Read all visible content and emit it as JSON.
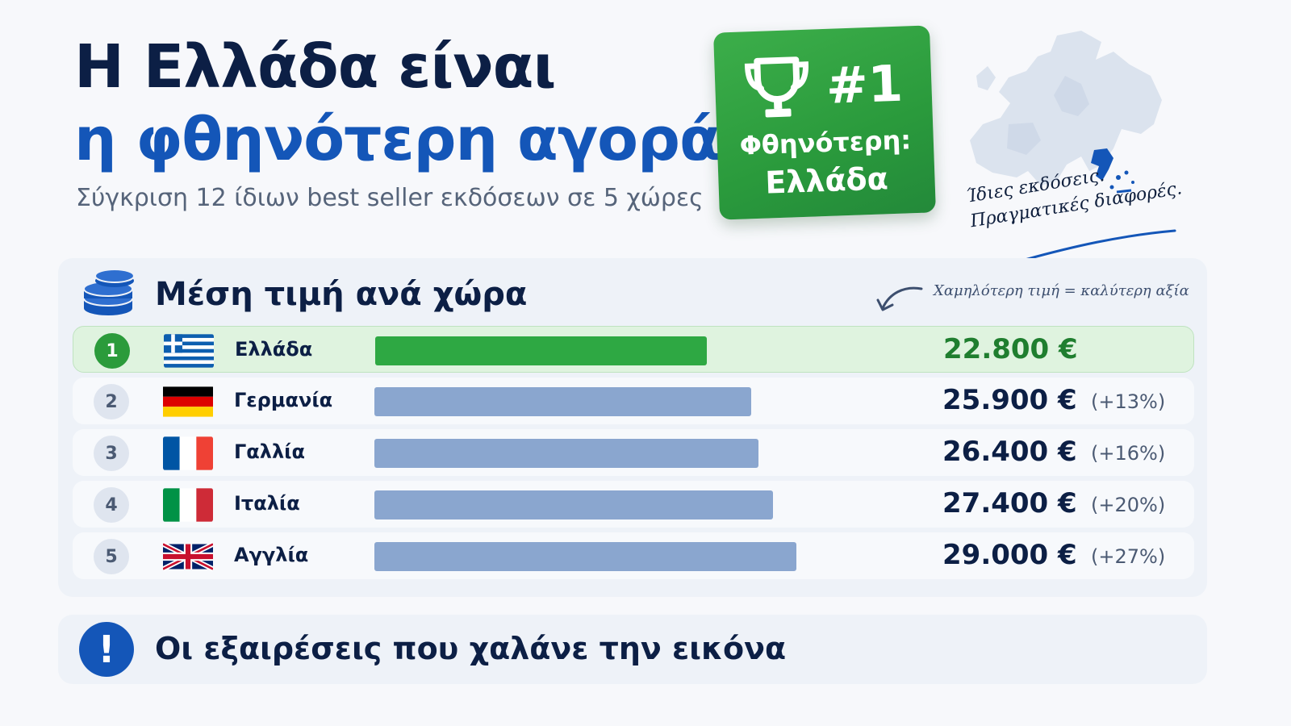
{
  "header": {
    "title_line1": "Η Ελλάδα είναι",
    "title_line2": "η φθηνότερη αγορά",
    "subtitle": "Σύγκριση 12 ίδιων best seller εκδόσεων σε 5 χώρες"
  },
  "badge": {
    "rank": "#1",
    "line1": "Φθηνότερη:",
    "line2": "Ελλάδα",
    "icon": "trophy-icon"
  },
  "tagline": {
    "line1": "Ίδιες εκδόσεις.",
    "line2": "Πραγματικές διαφορές."
  },
  "colors": {
    "accent_blue": "#1456b8",
    "dark_navy": "#0c1f45",
    "green": "#2ea843",
    "bar_blue": "#8aa6cf"
  },
  "chart_data": {
    "type": "bar",
    "orientation": "horizontal",
    "title": "Μέση τιμή ανά χώρα",
    "hint": "Χαμηλότερη τιμή = καλύτερη αξία",
    "categories": [
      "Ελλάδα",
      "Γερμανία",
      "Γαλλία",
      "Ιταλία",
      "Αγγλία"
    ],
    "ranks": [
      "1",
      "2",
      "3",
      "4",
      "5"
    ],
    "values": [
      22800,
      25900,
      26400,
      27400,
      29000
    ],
    "value_labels": [
      "22.800 €",
      "25.900 €",
      "26.400 €",
      "27.400 €",
      "29.000 €"
    ],
    "diff_labels": [
      "",
      "(+13%)",
      "(+16%)",
      "(+20%)",
      "(+27%)"
    ],
    "flags": [
      "greece-flag",
      "germany-flag",
      "france-flag",
      "italy-flag",
      "uk-flag"
    ],
    "xlim": [
      0,
      38800
    ],
    "grid": false,
    "legend": "none"
  },
  "exceptions": {
    "title": "Οι εξαιρέσεις που χαλάνε την εικόνα",
    "icon": "exclamation-icon"
  }
}
